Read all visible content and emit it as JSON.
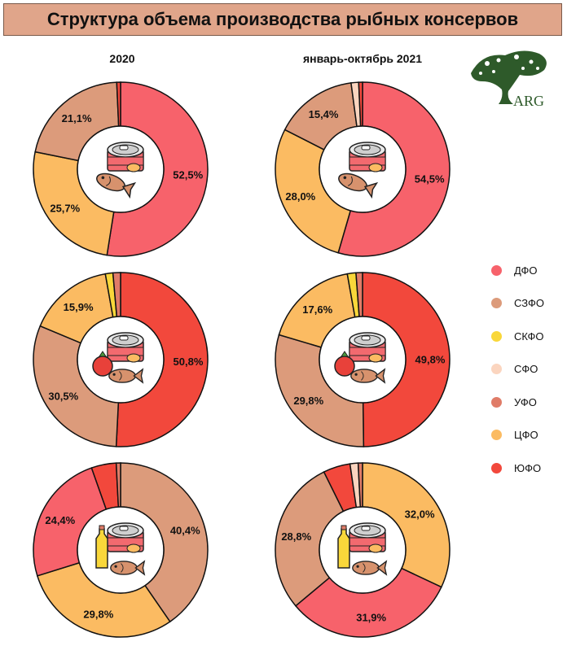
{
  "title": "Структура объема производства рыбных консервов",
  "columns": [
    "2020",
    "январь-октябрь 2021"
  ],
  "logo_text": "ARG",
  "colors": {
    "ДФО": "#f7626b",
    "СЗФО": "#dc9b7b",
    "СКФО": "#f9d73a",
    "СФО": "#fbd5bf",
    "УФО": "#e07c68",
    "ЦФО": "#fbbb62",
    "ЮФО": "#f2483c"
  },
  "legend": [
    "ДФО",
    "СЗФО",
    "СКФО",
    "СФО",
    "УФО",
    "ЦФО",
    "ЮФО"
  ],
  "chart_data": [
    {
      "type": "pie",
      "row": 0,
      "col": 0,
      "icon": "fish-can-icon",
      "slices": [
        {
          "region": "ДФО",
          "value": 52.5,
          "label": "52,5%"
        },
        {
          "region": "ЦФО",
          "value": 25.7,
          "label": "25,7%"
        },
        {
          "region": "СЗФО",
          "value": 21.1,
          "label": "21,1%"
        },
        {
          "region": "ЮФО",
          "value": 0.7,
          "label": ""
        }
      ]
    },
    {
      "type": "pie",
      "row": 0,
      "col": 1,
      "icon": "fish-can-icon",
      "slices": [
        {
          "region": "ДФО",
          "value": 54.5,
          "label": "54,5%"
        },
        {
          "region": "ЦФО",
          "value": 28.0,
          "label": "28,0%"
        },
        {
          "region": "СЗФО",
          "value": 15.4,
          "label": "15,4%"
        },
        {
          "region": "СФО",
          "value": 1.4,
          "label": ""
        },
        {
          "region": "ЮФО",
          "value": 0.7,
          "label": ""
        }
      ]
    },
    {
      "type": "pie",
      "row": 1,
      "col": 0,
      "icon": "tomato-fish-can-icon",
      "slices": [
        {
          "region": "ЮФО",
          "value": 50.8,
          "label": "50,8%"
        },
        {
          "region": "СЗФО",
          "value": 30.5,
          "label": "30,5%"
        },
        {
          "region": "ЦФО",
          "value": 15.9,
          "label": "15,9%"
        },
        {
          "region": "СКФО",
          "value": 1.4,
          "label": ""
        },
        {
          "region": "УФО",
          "value": 1.4,
          "label": ""
        }
      ]
    },
    {
      "type": "pie",
      "row": 1,
      "col": 1,
      "icon": "tomato-fish-can-icon",
      "slices": [
        {
          "region": "ЮФО",
          "value": 49.8,
          "label": "49,8%"
        },
        {
          "region": "СЗФО",
          "value": 29.8,
          "label": "29,8%"
        },
        {
          "region": "ЦФО",
          "value": 17.6,
          "label": "17,6%"
        },
        {
          "region": "СКФО",
          "value": 1.6,
          "label": ""
        },
        {
          "region": "УФО",
          "value": 1.2,
          "label": ""
        }
      ]
    },
    {
      "type": "pie",
      "row": 2,
      "col": 0,
      "icon": "oil-fish-can-icon",
      "slices": [
        {
          "region": "СЗФО",
          "value": 40.4,
          "label": "40,4%"
        },
        {
          "region": "ЦФО",
          "value": 29.8,
          "label": "29,8%"
        },
        {
          "region": "ДФО",
          "value": 24.4,
          "label": "24,4%"
        },
        {
          "region": "ЮФО",
          "value": 4.6,
          "label": ""
        },
        {
          "region": "УФО",
          "value": 0.8,
          "label": ""
        }
      ]
    },
    {
      "type": "pie",
      "row": 2,
      "col": 1,
      "icon": "oil-fish-can-icon",
      "slices": [
        {
          "region": "ЦФО",
          "value": 32.0,
          "label": "32,0%"
        },
        {
          "region": "ДФО",
          "value": 31.9,
          "label": "31,9%"
        },
        {
          "region": "СЗФО",
          "value": 28.8,
          "label": "28,8%"
        },
        {
          "region": "ЮФО",
          "value": 5.0,
          "label": ""
        },
        {
          "region": "СФО",
          "value": 1.5,
          "label": ""
        },
        {
          "region": "УФО",
          "value": 0.8,
          "label": ""
        }
      ]
    }
  ]
}
